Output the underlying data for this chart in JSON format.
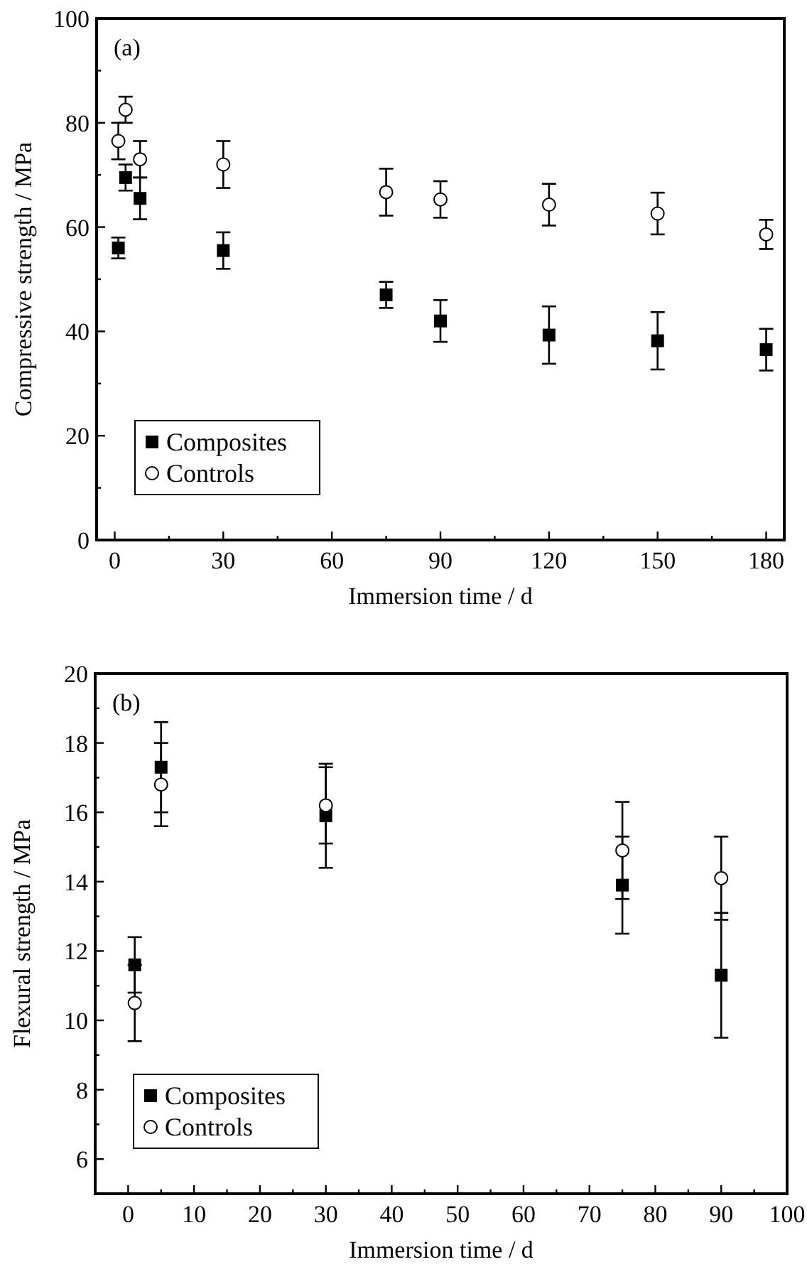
{
  "chart_data": [
    {
      "type": "scatter",
      "title": "(a)",
      "xlabel": "Immersion time / d",
      "ylabel": "Compressive strength / MPa",
      "x": [
        1,
        3,
        7,
        30,
        75,
        90,
        120,
        150,
        180
      ],
      "xlim": [
        -5,
        185
      ],
      "xticks": [
        0,
        {
          "value": 15,
          "label": null
        },
        30,
        {
          "value": 45,
          "label": null
        },
        60,
        {
          "value": 75,
          "label": null
        },
        90,
        {
          "value": 105,
          "label": null
        },
        120,
        {
          "value": 135,
          "label": null
        },
        150,
        {
          "value": 165,
          "label": null
        },
        180
      ],
      "ylim": [
        0,
        100
      ],
      "yticks": [
        0,
        {
          "value": 10,
          "label": null
        },
        20,
        {
          "value": 30,
          "label": null
        },
        40,
        {
          "value": 50,
          "label": null
        },
        60,
        {
          "value": 70,
          "label": null
        },
        80,
        {
          "value": 90,
          "label": null
        },
        100
      ],
      "legend": "bottom left",
      "grid": false,
      "series": [
        {
          "name": "Composites",
          "color": "#000000",
          "marker": "square",
          "values": [
            56,
            69.5,
            65.5,
            55.5,
            47,
            42,
            39.3,
            38.2,
            36.5
          ],
          "errors": [
            2,
            2.5,
            4,
            3.5,
            2.5,
            4,
            5.5,
            5.5,
            4
          ]
        },
        {
          "name": "Controls",
          "color": "#000000",
          "marker": "circle",
          "values": [
            76.5,
            82.5,
            73,
            72,
            66.7,
            65.3,
            64.3,
            62.6,
            58.6
          ],
          "errors": [
            3.5,
            2.5,
            3.5,
            4.5,
            4.5,
            3.5,
            4,
            4,
            2.8
          ]
        }
      ]
    },
    {
      "type": "scatter",
      "title": "(b)",
      "xlabel": "Immersion time / d",
      "ylabel": "Flexural strength / MPa",
      "x": [
        1,
        5,
        30,
        75,
        90
      ],
      "xlim": [
        -5,
        100
      ],
      "xticks": [
        0,
        {
          "value": 5,
          "label": null
        },
        10,
        {
          "value": 15,
          "label": null
        },
        20,
        {
          "value": 25,
          "label": null
        },
        30,
        {
          "value": 35,
          "label": null
        },
        40,
        {
          "value": 45,
          "label": null
        },
        50,
        {
          "value": 55,
          "label": null
        },
        60,
        {
          "value": 65,
          "label": null
        },
        70,
        {
          "value": 75,
          "label": null
        },
        80,
        {
          "value": 85,
          "label": null
        },
        90,
        {
          "value": 95,
          "label": null
        },
        100
      ],
      "ylim": [
        5,
        20
      ],
      "yticks": [
        6,
        {
          "value": 7,
          "label": null
        },
        8,
        {
          "value": 9,
          "label": null
        },
        10,
        {
          "value": 11,
          "label": null
        },
        12,
        {
          "value": 13,
          "label": null
        },
        14,
        {
          "value": 15,
          "label": null
        },
        16,
        {
          "value": 17,
          "label": null
        },
        18,
        {
          "value": 19,
          "label": null
        },
        20
      ],
      "legend": "bottom left",
      "grid": false,
      "series": [
        {
          "name": "Composites",
          "color": "#000000",
          "marker": "square",
          "values": [
            11.6,
            17.3,
            15.9,
            13.9,
            11.3
          ],
          "errors": [
            0.8,
            1.3,
            1.5,
            1.4,
            1.8
          ]
        },
        {
          "name": "Controls",
          "color": "#000000",
          "marker": "circle",
          "values": [
            10.5,
            16.8,
            16.2,
            14.9,
            14.1
          ],
          "errors": [
            1.1,
            1.2,
            1.1,
            1.4,
            1.2
          ]
        }
      ]
    }
  ]
}
